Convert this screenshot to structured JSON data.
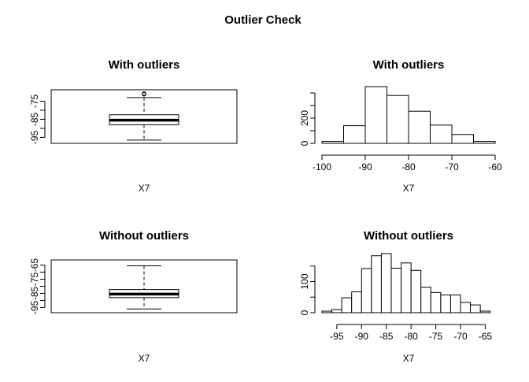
{
  "main_title": "Outlier Check",
  "chart_data": [
    {
      "id": "box_with",
      "type": "boxplot",
      "title": "With outliers",
      "xlabel": "X7",
      "ylim": [
        -97,
        -70
      ],
      "yticks": [
        -75,
        -80,
        -85,
        -90,
        -95
      ],
      "ytick_labels": [
        "-75",
        "",
        "-85",
        "",
        "-95"
      ],
      "stats": {
        "min": -96.5,
        "q1": -88.0,
        "median": -85.5,
        "q3": -82.5,
        "max": -73.0
      },
      "outliers": [
        -70.8,
        -71.2
      ]
    },
    {
      "id": "hist_with",
      "type": "histogram",
      "title": "With outliers",
      "xlabel": "X7",
      "xlim": [
        -100,
        -60
      ],
      "xticks": [
        -100,
        -90,
        -80,
        -70,
        -60
      ],
      "ylim": [
        0,
        500
      ],
      "yticks": [
        0,
        100,
        200,
        300,
        400
      ],
      "ytick_labels": [
        "0",
        "",
        "200",
        "",
        ""
      ],
      "bins": [
        {
          "from": -100,
          "to": -95,
          "count": 15
        },
        {
          "from": -95,
          "to": -90,
          "count": 140
        },
        {
          "from": -90,
          "to": -85,
          "count": 450
        },
        {
          "from": -85,
          "to": -80,
          "count": 380
        },
        {
          "from": -80,
          "to": -75,
          "count": 255
        },
        {
          "from": -75,
          "to": -70,
          "count": 145
        },
        {
          "from": -70,
          "to": -65,
          "count": 70
        },
        {
          "from": -65,
          "to": -60,
          "count": 15
        }
      ]
    },
    {
      "id": "box_without",
      "type": "boxplot",
      "title": "Without outliers",
      "xlabel": "X7",
      "ylim": [
        -97,
        -63
      ],
      "yticks": [
        -65,
        -70,
        -75,
        -80,
        -85,
        -90,
        -95
      ],
      "ytick_labels": [
        "-65",
        "",
        "-75",
        "",
        "-85",
        "",
        "-95"
      ],
      "stats": {
        "min": -96.0,
        "q1": -88.0,
        "median": -85.5,
        "q3": -82.3,
        "max": -65.5
      },
      "outliers": []
    },
    {
      "id": "hist_without",
      "type": "histogram",
      "title": "Without outliers",
      "xlabel": "X7",
      "xlim": [
        -98,
        -63
      ],
      "xticks": [
        -95,
        -90,
        -85,
        -80,
        -75,
        -70,
        -65
      ],
      "ylim": [
        0,
        200
      ],
      "yticks": [
        0,
        50,
        100,
        150
      ],
      "ytick_labels": [
        "0",
        "",
        "100",
        ""
      ],
      "bins": [
        {
          "from": -98,
          "to": -96,
          "count": 5
        },
        {
          "from": -96,
          "to": -94,
          "count": 10
        },
        {
          "from": -94,
          "to": -92,
          "count": 48
        },
        {
          "from": -92,
          "to": -90,
          "count": 67
        },
        {
          "from": -90,
          "to": -88,
          "count": 142
        },
        {
          "from": -88,
          "to": -86,
          "count": 183
        },
        {
          "from": -86,
          "to": -84,
          "count": 190
        },
        {
          "from": -84,
          "to": -82,
          "count": 143
        },
        {
          "from": -82,
          "to": -80,
          "count": 160
        },
        {
          "from": -80,
          "to": -78,
          "count": 136
        },
        {
          "from": -78,
          "to": -76,
          "count": 82
        },
        {
          "from": -76,
          "to": -74,
          "count": 65
        },
        {
          "from": -74,
          "to": -72,
          "count": 57
        },
        {
          "from": -72,
          "to": -70,
          "count": 57
        },
        {
          "from": -70,
          "to": -68,
          "count": 33
        },
        {
          "from": -68,
          "to": -66,
          "count": 25
        },
        {
          "from": -66,
          "to": -64,
          "count": 5
        }
      ]
    }
  ]
}
